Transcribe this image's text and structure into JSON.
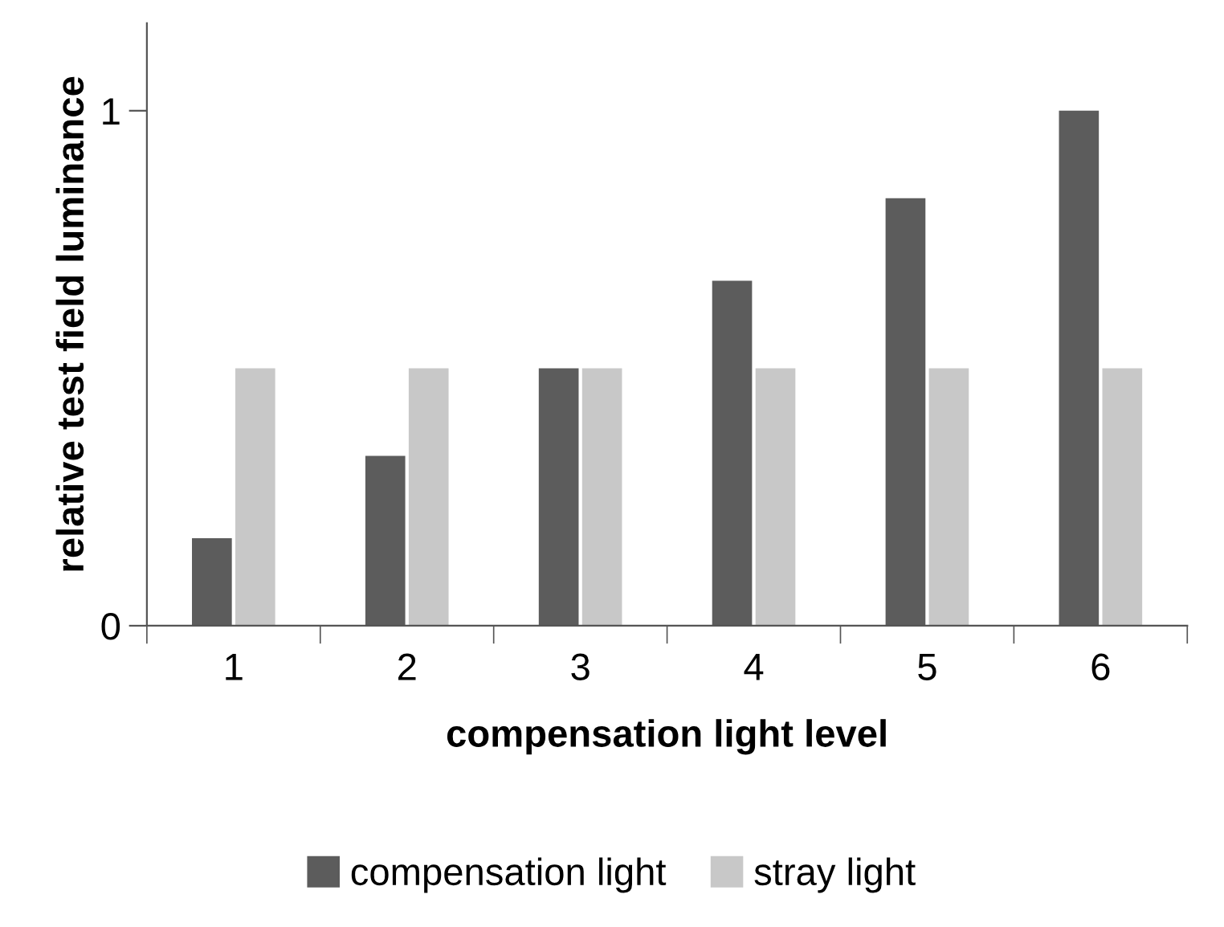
{
  "chart_data": {
    "type": "bar",
    "xlabel": "compensation light level",
    "ylabel": "relative test field luminance",
    "categories": [
      "1",
      "2",
      "3",
      "4",
      "5",
      "6"
    ],
    "series": [
      {
        "name": "compensation light",
        "color": "#5c5c5c",
        "values": [
          0.17,
          0.33,
          0.5,
          0.67,
          0.83,
          1
        ]
      },
      {
        "name": "stray light",
        "color": "#c8c8c8",
        "values": [
          0.5,
          0.5,
          0.5,
          0.5,
          0.5,
          0.5
        ]
      }
    ],
    "ylim": [
      0,
      1.17
    ],
    "yticks": [
      0,
      1
    ],
    "grid": false,
    "legend": "bottom"
  }
}
